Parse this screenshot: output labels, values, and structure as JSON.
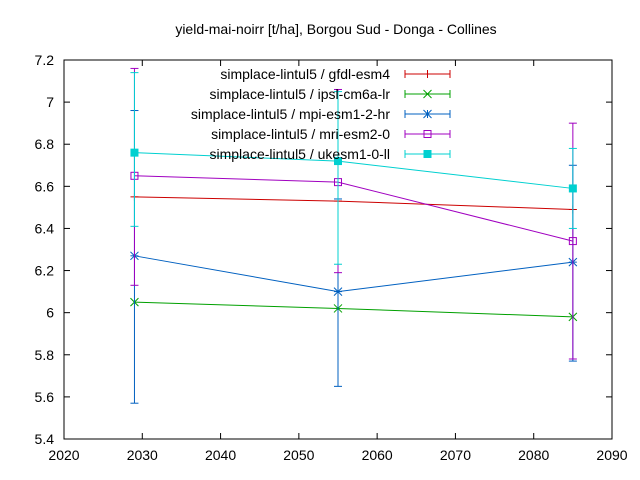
{
  "chart_data": {
    "type": "line",
    "title": "yield-mai-noirr [t/ha], Borgou Sud - Donga - Collines",
    "xlabel": "",
    "ylabel": "",
    "xlim": [
      2020,
      2090
    ],
    "ylim": [
      5.4,
      7.2
    ],
    "xticks": [
      2020,
      2030,
      2040,
      2050,
      2060,
      2070,
      2080,
      2090
    ],
    "yticks": [
      5.4,
      5.6,
      5.8,
      6,
      6.2,
      6.4,
      6.6,
      6.8,
      7,
      7.2
    ],
    "xtick_labels": [
      "2020",
      "2030",
      "2040",
      "2050",
      "2060",
      "2070",
      "2080",
      "2090"
    ],
    "ytick_labels": [
      "5.4",
      "5.6",
      "5.8",
      "6",
      "6.2",
      "6.4",
      "6.6",
      "6.8",
      "7",
      "7.2"
    ],
    "legend_position": "top-right",
    "grid": false,
    "series": [
      {
        "name": "simplace-lintul5 / gfdl-esm4",
        "color": "#cc0000",
        "marker": "plus",
        "x": [
          2029,
          2055,
          2085
        ],
        "y": [
          6.55,
          6.53,
          6.49
        ],
        "err_low": [
          6.55,
          6.53,
          6.49
        ],
        "err_high": [
          6.55,
          6.53,
          6.49
        ]
      },
      {
        "name": "simplace-lintul5 / ipsl-cm6a-lr",
        "color": "#00a000",
        "marker": "cross",
        "x": [
          2029,
          2055,
          2085
        ],
        "y": [
          6.05,
          6.02,
          5.98
        ],
        "err_low": [
          6.05,
          6.02,
          5.98
        ],
        "err_high": [
          6.05,
          6.02,
          5.98
        ]
      },
      {
        "name": "simplace-lintul5 / mpi-esm1-2-hr",
        "color": "#0060c0",
        "marker": "star",
        "x": [
          2029,
          2055,
          2085
        ],
        "y": [
          6.27,
          6.1,
          6.24
        ],
        "err_low": [
          5.57,
          5.65,
          5.77
        ],
        "err_high": [
          6.96,
          6.54,
          6.7
        ]
      },
      {
        "name": "simplace-lintul5 / mri-esm2-0",
        "color": "#a000c0",
        "marker": "square-open",
        "x": [
          2029,
          2055,
          2085
        ],
        "y": [
          6.65,
          6.62,
          6.34
        ],
        "err_low": [
          6.13,
          6.19,
          5.78
        ],
        "err_high": [
          7.16,
          7.06,
          6.9
        ]
      },
      {
        "name": "simplace-lintul5 / ukesm1-0-ll",
        "color": "#00d0d0",
        "marker": "square-filled",
        "x": [
          2029,
          2055,
          2085
        ],
        "y": [
          6.76,
          6.72,
          6.59
        ],
        "err_low": [
          6.41,
          6.23,
          6.4
        ],
        "err_high": [
          7.14,
          7.05,
          6.78
        ]
      }
    ]
  }
}
